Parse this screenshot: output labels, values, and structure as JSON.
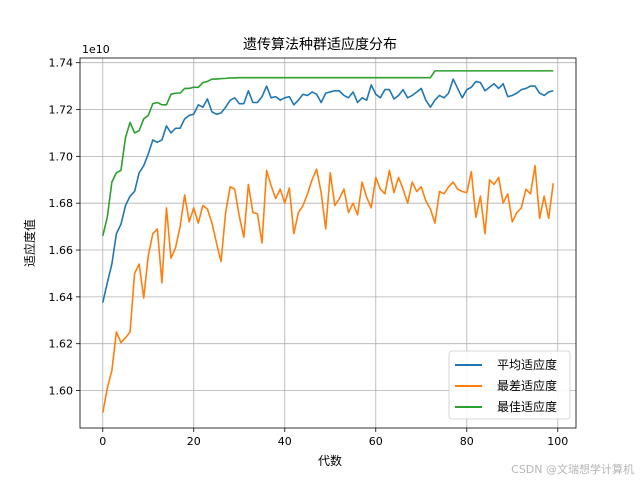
{
  "watermark": "CSDN @文瑞想学计算机",
  "chart_data": {
    "type": "line",
    "title": "遗传算法种群适应度分布",
    "xlabel": "代数",
    "ylabel": "适应度值",
    "y_offset_label": "1e10",
    "y_scale": 10000000000,
    "xlim": [
      -5,
      104
    ],
    "ylim": [
      1.584,
      1.742
    ],
    "xticks": [
      0,
      20,
      40,
      60,
      80,
      100
    ],
    "yticks": [
      1.6,
      1.62,
      1.64,
      1.66,
      1.68,
      1.7,
      1.72,
      1.74
    ],
    "ytick_labels": [
      "1.60",
      "1.62",
      "1.64",
      "1.66",
      "1.68",
      "1.70",
      "1.72",
      "1.74"
    ],
    "grid": true,
    "legend_position": "lower-right",
    "series": [
      {
        "name": "平均适应度",
        "color": "#1f77b4",
        "values": [
          1.6375,
          1.646,
          1.654,
          1.667,
          1.671,
          1.679,
          1.683,
          1.685,
          1.693,
          1.696,
          1.701,
          1.707,
          1.706,
          1.707,
          1.713,
          1.71,
          1.712,
          1.712,
          1.716,
          1.7175,
          1.718,
          1.722,
          1.721,
          1.7245,
          1.719,
          1.718,
          1.7185,
          1.721,
          1.724,
          1.725,
          1.7225,
          1.7225,
          1.728,
          1.723,
          1.723,
          1.7255,
          1.73,
          1.725,
          1.7255,
          1.724,
          1.725,
          1.7255,
          1.722,
          1.724,
          1.7265,
          1.726,
          1.7275,
          1.7265,
          1.723,
          1.727,
          1.7275,
          1.728,
          1.728,
          1.726,
          1.725,
          1.7275,
          1.723,
          1.725,
          1.724,
          1.7305,
          1.7265,
          1.725,
          1.7285,
          1.7285,
          1.7245,
          1.726,
          1.7285,
          1.725,
          1.726,
          1.7275,
          1.729,
          1.724,
          1.721,
          1.724,
          1.726,
          1.725,
          1.727,
          1.733,
          1.729,
          1.725,
          1.7285,
          1.7295,
          1.732,
          1.7315,
          1.728,
          1.7295,
          1.731,
          1.729,
          1.731,
          1.7255,
          1.726,
          1.727,
          1.7285,
          1.729,
          1.73,
          1.73,
          1.727,
          1.726,
          1.7275,
          1.728
        ]
      },
      {
        "name": "最差适应度",
        "color": "#ff7f0e",
        "values": [
          1.5905,
          1.601,
          1.6085,
          1.625,
          1.6205,
          1.6225,
          1.625,
          1.65,
          1.654,
          1.6395,
          1.6575,
          1.667,
          1.669,
          1.646,
          1.678,
          1.6565,
          1.661,
          1.67,
          1.6835,
          1.672,
          1.678,
          1.6715,
          1.679,
          1.6775,
          1.6715,
          1.663,
          1.655,
          1.676,
          1.687,
          1.686,
          1.6745,
          1.6655,
          1.688,
          1.676,
          1.6755,
          1.663,
          1.694,
          1.6875,
          1.682,
          1.686,
          1.68,
          1.6865,
          1.667,
          1.676,
          1.679,
          1.684,
          1.69,
          1.6945,
          1.6845,
          1.669,
          1.693,
          1.679,
          1.682,
          1.686,
          1.676,
          1.68,
          1.675,
          1.689,
          1.6825,
          1.678,
          1.691,
          1.686,
          1.684,
          1.694,
          1.6845,
          1.691,
          1.686,
          1.68,
          1.689,
          1.685,
          1.687,
          1.681,
          1.6775,
          1.6715,
          1.685,
          1.684,
          1.687,
          1.689,
          1.686,
          1.685,
          1.6845,
          1.6935,
          1.674,
          1.683,
          1.667,
          1.69,
          1.688,
          1.691,
          1.68,
          1.684,
          1.672,
          1.676,
          1.678,
          1.686,
          1.684,
          1.696,
          1.6735,
          1.683,
          1.6735,
          1.6885
        ]
      },
      {
        "name": "最佳适应度",
        "color": "#2ca02c",
        "values": [
          1.666,
          1.674,
          1.689,
          1.693,
          1.694,
          1.708,
          1.7145,
          1.71,
          1.711,
          1.716,
          1.7175,
          1.7225,
          1.723,
          1.722,
          1.722,
          1.7265,
          1.727,
          1.727,
          1.729,
          1.729,
          1.7295,
          1.7295,
          1.7315,
          1.732,
          1.733,
          1.733,
          1.7332,
          1.7333,
          1.7335,
          1.7335,
          1.7336,
          1.7336,
          1.7336,
          1.7336,
          1.7336,
          1.7336,
          1.7336,
          1.7336,
          1.7336,
          1.7336,
          1.7336,
          1.7336,
          1.7336,
          1.7336,
          1.7336,
          1.7336,
          1.7336,
          1.7336,
          1.7336,
          1.7336,
          1.7336,
          1.7336,
          1.7336,
          1.7336,
          1.7336,
          1.7336,
          1.7336,
          1.7336,
          1.7336,
          1.7336,
          1.7336,
          1.7336,
          1.7336,
          1.7336,
          1.7336,
          1.7336,
          1.7336,
          1.7336,
          1.7336,
          1.7336,
          1.7336,
          1.7336,
          1.7336,
          1.7365,
          1.7365,
          1.7365,
          1.7365,
          1.7365,
          1.7365,
          1.7365,
          1.7365,
          1.7365,
          1.7365,
          1.7365,
          1.7365,
          1.7365,
          1.7365,
          1.7365,
          1.7365,
          1.7365,
          1.7365,
          1.7365,
          1.7365,
          1.7365,
          1.7365,
          1.7365,
          1.7365,
          1.7365,
          1.7365,
          1.7365
        ]
      }
    ]
  }
}
